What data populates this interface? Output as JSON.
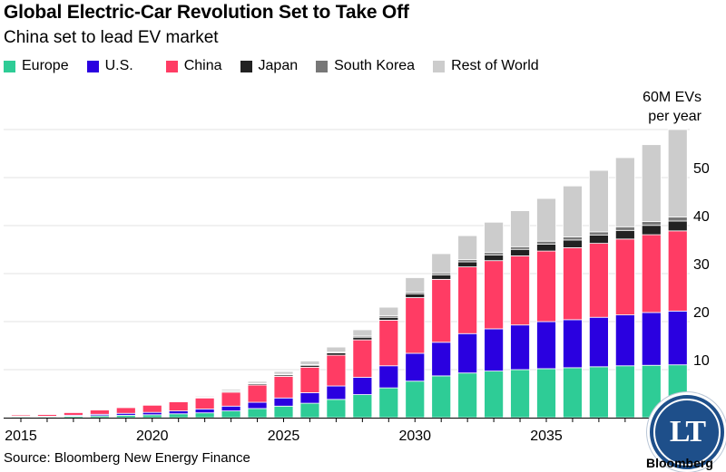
{
  "header": {
    "title": "Global Electric-Car Revolution Set to Take Off",
    "subtitle": "China set to lead EV market"
  },
  "footer": {
    "source": "Source: Bloomberg New Energy Finance",
    "brand": "Bloomberg"
  },
  "seal": {
    "text": "LT"
  },
  "colors": {
    "europe": "#2ecc96",
    "us": "#2a00e0",
    "china": "#ff3c64",
    "japan": "#222222",
    "south_korea": "#777777",
    "rest_of_world": "#cccccc",
    "seal": "#1e4f8a"
  },
  "chart_data": {
    "type": "bar",
    "stacked": true,
    "title": "Global Electric-Car Revolution Set to Take Off",
    "subtitle": "China set to lead EV market",
    "annotation": [
      "60M EVs",
      "per year"
    ],
    "x": [
      2015,
      2016,
      2017,
      2018,
      2019,
      2020,
      2021,
      2022,
      2023,
      2024,
      2025,
      2026,
      2027,
      2028,
      2029,
      2030,
      2031,
      2032,
      2033,
      2034,
      2035,
      2036,
      2037,
      2038,
      2039,
      2040
    ],
    "x_tick_labels": [
      "2015",
      "2020",
      "2025",
      "2030",
      "2035"
    ],
    "x_tick_years": [
      2015,
      2020,
      2025,
      2030,
      2035
    ],
    "y_tick_labels": [
      "10",
      "20",
      "30",
      "40",
      "50"
    ],
    "y_ticks": [
      10,
      20,
      30,
      40,
      50
    ],
    "ylim": [
      0,
      60
    ],
    "grid": true,
    "legend_position": "top",
    "series": [
      {
        "name": "Europe",
        "color": "#2ecc96",
        "values": [
          0.2,
          0.2,
          0.3,
          0.4,
          0.5,
          0.6,
          0.8,
          1.0,
          1.4,
          1.9,
          2.4,
          3.0,
          3.8,
          4.8,
          6.2,
          7.6,
          8.7,
          9.3,
          9.7,
          10.0,
          10.2,
          10.4,
          10.6,
          10.8,
          10.9,
          11.0
        ]
      },
      {
        "name": "U.S.",
        "color": "#2a00e0",
        "values": [
          0.1,
          0.1,
          0.2,
          0.3,
          0.4,
          0.5,
          0.6,
          0.8,
          1.0,
          1.3,
          1.7,
          2.2,
          2.8,
          3.6,
          4.6,
          5.8,
          7.0,
          8.2,
          8.8,
          9.3,
          9.8,
          10.0,
          10.3,
          10.6,
          11.0,
          11.2
        ]
      },
      {
        "name": "China",
        "color": "#ff3c64",
        "values": [
          0.3,
          0.4,
          0.6,
          0.9,
          1.2,
          1.5,
          1.9,
          2.3,
          2.9,
          3.6,
          4.5,
          5.3,
          6.4,
          7.8,
          9.5,
          11.6,
          13.1,
          13.9,
          14.2,
          14.4,
          14.7,
          15.0,
          15.4,
          15.8,
          16.2,
          16.7
        ]
      },
      {
        "name": "Japan",
        "color": "#222222",
        "values": [
          0.05,
          0.05,
          0.05,
          0.1,
          0.1,
          0.1,
          0.1,
          0.15,
          0.2,
          0.25,
          0.3,
          0.4,
          0.5,
          0.55,
          0.6,
          0.8,
          0.95,
          1.05,
          1.2,
          1.35,
          1.45,
          1.6,
          1.7,
          1.8,
          1.95,
          2.05
        ]
      },
      {
        "name": "South Korea",
        "color": "#777777",
        "values": [
          0.0,
          0.0,
          0.0,
          0.05,
          0.05,
          0.05,
          0.05,
          0.05,
          0.1,
          0.1,
          0.15,
          0.15,
          0.2,
          0.25,
          0.3,
          0.35,
          0.4,
          0.45,
          0.5,
          0.55,
          0.6,
          0.65,
          0.7,
          0.75,
          0.8,
          0.85
        ]
      },
      {
        "name": "Rest of World",
        "color": "#cccccc",
        "values": [
          0.05,
          0.05,
          0.05,
          0.1,
          0.1,
          0.15,
          0.15,
          0.2,
          0.3,
          0.4,
          0.55,
          0.75,
          1.0,
          1.3,
          1.8,
          3.0,
          4.0,
          5.0,
          6.3,
          7.5,
          8.9,
          10.6,
          12.8,
          14.4,
          16.0,
          18.2
        ]
      }
    ]
  }
}
